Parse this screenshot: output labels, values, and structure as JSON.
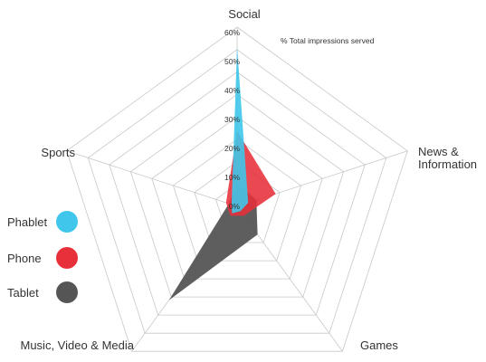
{
  "chart_data": {
    "type": "radar",
    "note": "% Total impressions served",
    "axes": [
      "Social",
      "News & Information",
      "Games",
      "Music, Video & Media",
      "Sports"
    ],
    "axis_label_lines": [
      [
        "Social"
      ],
      [
        "News &",
        "Information"
      ],
      [
        "Games"
      ],
      [
        "Music, Video & Media"
      ],
      [
        "Sports"
      ]
    ],
    "ticks": [
      "0%",
      "10%",
      "20%",
      "30%",
      "40%",
      "50%",
      "60%"
    ],
    "rmax": 60,
    "grid_rings": 8,
    "series": [
      {
        "name": "Tablet",
        "color": "#555555",
        "opacity": 0.95,
        "values": [
          8,
          7,
          12,
          40,
          3
        ]
      },
      {
        "name": "Phone",
        "color": "#e8303a",
        "opacity": 0.88,
        "values": [
          26,
          14,
          4,
          4,
          4
        ]
      },
      {
        "name": "Phablet",
        "color": "#3fc6ea",
        "opacity": 0.9,
        "values": [
          55,
          4,
          2,
          3,
          2
        ]
      }
    ],
    "legend": [
      {
        "name": "Phablet",
        "color": "#3fc6ea"
      },
      {
        "name": "Phone",
        "color": "#e8303a"
      },
      {
        "name": "Tablet",
        "color": "#555555"
      }
    ]
  }
}
